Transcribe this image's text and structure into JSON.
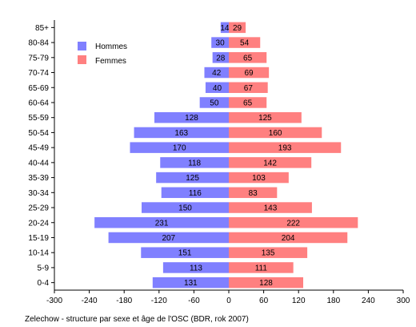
{
  "chart_data": {
    "type": "bar",
    "orientation": "horizontal",
    "categories": [
      "0-4",
      "5-9",
      "10-14",
      "15-19",
      "20-24",
      "25-29",
      "30-34",
      "35-39",
      "40-44",
      "45-49",
      "50-54",
      "55-59",
      "60-64",
      "65-69",
      "70-74",
      "75-79",
      "80-84",
      "85+"
    ],
    "series": [
      {
        "name": "Hommes",
        "color": "#8080ff",
        "values": [
          131,
          113,
          151,
          207,
          231,
          150,
          116,
          125,
          118,
          170,
          163,
          128,
          50,
          40,
          42,
          28,
          30,
          14
        ]
      },
      {
        "name": "Femmes",
        "color": "#ff8080",
        "values": [
          128,
          111,
          135,
          204,
          222,
          143,
          83,
          103,
          142,
          193,
          160,
          125,
          65,
          67,
          69,
          65,
          54,
          29
        ]
      }
    ],
    "xticks": [
      "-300",
      "-240",
      "-180",
      "-120",
      "-60",
      "0",
      "60",
      "120",
      "180",
      "240",
      "300"
    ],
    "xlim": [
      -300,
      300
    ],
    "legend_position": "top-left",
    "grid": false,
    "caption": "Zelechow - structure par sexe et âge de l'OSC (BDR, rok 2007)"
  }
}
